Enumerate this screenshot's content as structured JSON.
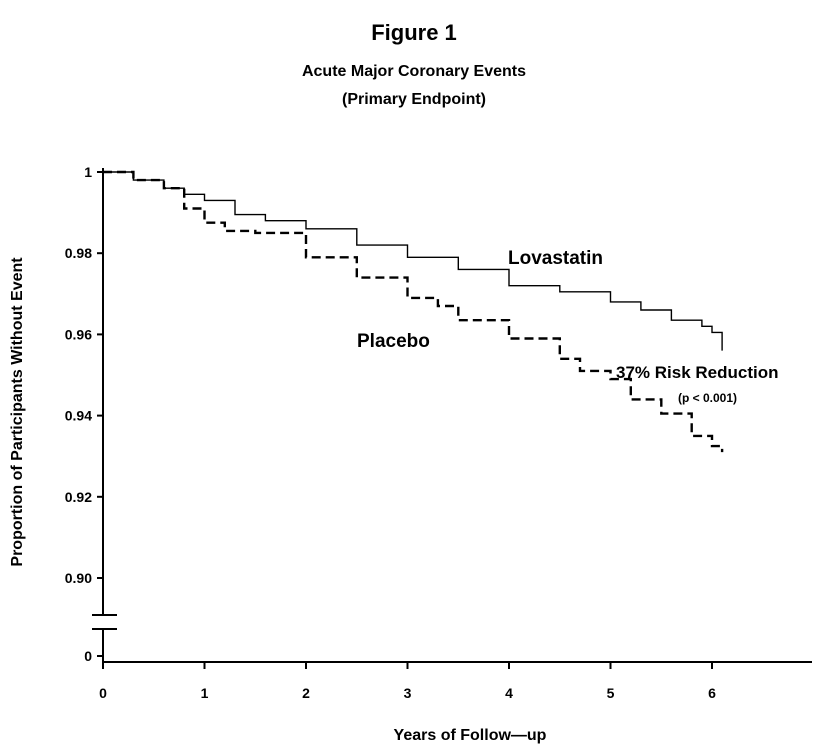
{
  "chart_data": {
    "type": "line",
    "title": "Figure 1",
    "subtitle_lines": [
      "Acute Major Coronary Events",
      "(Primary Endpoint)"
    ],
    "xlabel": "Years of Follow—up",
    "ylabel": "Proportion of Participants Without Event",
    "xlim": [
      0,
      7
    ],
    "ylim": [
      0.89,
      1.0
    ],
    "x_ticks": [
      0,
      1,
      2,
      3,
      4,
      5,
      6
    ],
    "x_tick_labels": [
      "0",
      "1",
      "2",
      "3",
      "4",
      "5",
      "6"
    ],
    "y_ticks": [
      1.0,
      0.98,
      0.96,
      0.94,
      0.92,
      0.9
    ],
    "y_tick_labels": [
      "1",
      "0.98",
      "0.96",
      "0.94",
      "0.92",
      "0.90"
    ],
    "y_break_label": "0",
    "grid": false,
    "series": [
      {
        "name": "Lovastatin",
        "style": "solid",
        "x": [
          0,
          0.3,
          0.6,
          0.8,
          1.0,
          1.3,
          1.6,
          2.0,
          2.5,
          3.0,
          3.5,
          4.0,
          4.5,
          5.0,
          5.3,
          5.6,
          5.9,
          6.0,
          6.1
        ],
        "y": [
          1.0,
          0.998,
          0.996,
          0.9945,
          0.993,
          0.9895,
          0.988,
          0.986,
          0.982,
          0.979,
          0.976,
          0.972,
          0.9705,
          0.968,
          0.966,
          0.9635,
          0.962,
          0.9605,
          0.956
        ]
      },
      {
        "name": "Placebo",
        "style": "dashed",
        "x": [
          0,
          0.3,
          0.6,
          0.8,
          1.0,
          1.2,
          1.5,
          2.0,
          2.5,
          3.0,
          3.3,
          3.5,
          4.0,
          4.5,
          4.7,
          5.0,
          5.2,
          5.5,
          5.8,
          6.0,
          6.1
        ],
        "y": [
          1.0,
          0.998,
          0.996,
          0.991,
          0.9875,
          0.9855,
          0.985,
          0.979,
          0.974,
          0.969,
          0.967,
          0.9635,
          0.959,
          0.954,
          0.951,
          0.949,
          0.944,
          0.9405,
          0.935,
          0.9325,
          0.931
        ]
      }
    ],
    "annotations": [
      "37% Risk Reduction",
      "(p < 0.001)"
    ]
  }
}
